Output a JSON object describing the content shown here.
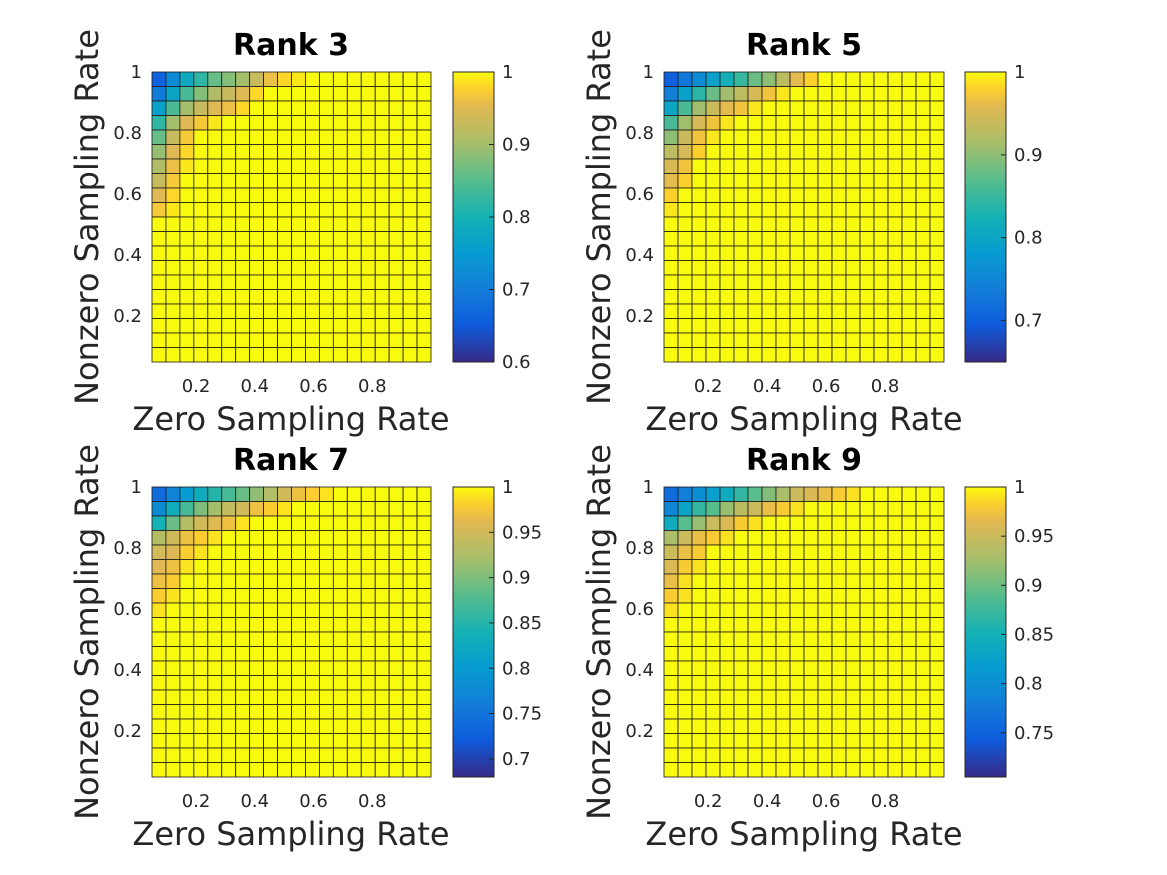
{
  "chart_data": [
    {
      "type": "heatmap",
      "title": "Rank 3",
      "xlabel": "Zero Sampling Rate",
      "ylabel": "Nonzero Sampling Rate",
      "grid_size": 20,
      "xlim": [
        0.05,
        1.0
      ],
      "ylim": [
        0.05,
        1.0
      ],
      "x_ticks": [
        0.2,
        0.4,
        0.6,
        0.8
      ],
      "x_tick_labels": [
        "0.2",
        "0.4",
        "0.6",
        "0.8"
      ],
      "y_ticks": [
        0.2,
        0.4,
        0.6,
        0.8,
        1.0
      ],
      "y_tick_labels": [
        "0.2",
        "0.4",
        "0.6",
        "0.8",
        "1"
      ],
      "colorbar": {
        "range": [
          0.6,
          1.0
        ],
        "ticks": [
          0.6,
          0.7,
          0.8,
          0.9,
          1.0
        ],
        "tick_labels": [
          "0.6",
          "0.7",
          "0.8",
          "0.9",
          "1"
        ]
      },
      "values_top_rows": [
        [
          0.66,
          0.72,
          0.78,
          0.82,
          0.86,
          0.88,
          0.9,
          0.93,
          0.96,
          0.98,
          0.99,
          1.0
        ],
        [
          0.7,
          0.77,
          0.84,
          0.88,
          0.91,
          0.93,
          0.95,
          0.98,
          1.0
        ],
        [
          0.76,
          0.84,
          0.9,
          0.93,
          0.95,
          0.96,
          0.98,
          1.0
        ],
        [
          0.82,
          0.9,
          0.95,
          0.97,
          0.99,
          1.0
        ],
        [
          0.86,
          0.93,
          0.97,
          1.0
        ],
        [
          0.89,
          0.95,
          0.98,
          1.0
        ],
        [
          0.91,
          0.96,
          0.99,
          1.0
        ],
        [
          0.93,
          0.97,
          1.0
        ],
        [
          0.95,
          0.98,
          1.0
        ],
        [
          0.97,
          0.99,
          1.0
        ]
      ],
      "default_value": 1.0
    },
    {
      "type": "heatmap",
      "title": "Rank 5",
      "xlabel": "Zero Sampling Rate",
      "ylabel": "Nonzero Sampling Rate",
      "grid_size": 20,
      "xlim": [
        0.05,
        1.0
      ],
      "ylim": [
        0.05,
        1.0
      ],
      "x_ticks": [
        0.2,
        0.4,
        0.6,
        0.8
      ],
      "x_tick_labels": [
        "0.2",
        "0.4",
        "0.6",
        "0.8"
      ],
      "y_ticks": [
        0.2,
        0.4,
        0.6,
        0.8,
        1.0
      ],
      "y_tick_labels": [
        "0.2",
        "0.4",
        "0.6",
        "0.8",
        "1"
      ],
      "colorbar": {
        "range": [
          0.65,
          1.0
        ],
        "ticks": [
          0.7,
          0.8,
          0.9,
          1.0
        ],
        "tick_labels": [
          "0.7",
          "0.8",
          "0.9",
          "1"
        ]
      },
      "values_top_rows": [
        [
          0.7,
          0.73,
          0.76,
          0.79,
          0.82,
          0.85,
          0.88,
          0.9,
          0.93,
          0.96,
          0.98,
          1.0
        ],
        [
          0.74,
          0.79,
          0.84,
          0.88,
          0.91,
          0.93,
          0.95,
          0.97,
          0.99,
          1.0
        ],
        [
          0.8,
          0.86,
          0.91,
          0.94,
          0.96,
          0.97,
          0.99,
          1.0
        ],
        [
          0.86,
          0.91,
          0.95,
          0.97,
          0.99,
          1.0
        ],
        [
          0.9,
          0.94,
          0.97,
          0.99,
          1.0
        ],
        [
          0.93,
          0.95,
          0.98,
          1.0
        ],
        [
          0.95,
          0.97,
          1.0
        ],
        [
          0.96,
          0.98,
          1.0
        ],
        [
          0.98,
          1.0
        ],
        [
          0.99,
          1.0
        ]
      ],
      "default_value": 1.0
    },
    {
      "type": "heatmap",
      "title": "Rank 7",
      "xlabel": "Zero Sampling Rate",
      "ylabel": "Nonzero Sampling Rate",
      "grid_size": 20,
      "xlim": [
        0.05,
        1.0
      ],
      "ylim": [
        0.05,
        1.0
      ],
      "x_ticks": [
        0.2,
        0.4,
        0.6,
        0.8
      ],
      "x_tick_labels": [
        "0.2",
        "0.4",
        "0.6",
        "0.8"
      ],
      "y_ticks": [
        0.2,
        0.4,
        0.6,
        0.8,
        1.0
      ],
      "y_tick_labels": [
        "0.2",
        "0.4",
        "0.6",
        "0.8",
        "1"
      ],
      "colorbar": {
        "range": [
          0.68,
          1.0
        ],
        "ticks": [
          0.7,
          0.75,
          0.8,
          0.85,
          0.9,
          0.95,
          1.0
        ],
        "tick_labels": [
          "0.7",
          "0.75",
          "0.8",
          "0.85",
          "0.9",
          "0.95",
          "1"
        ]
      },
      "values_top_rows": [
        [
          0.74,
          0.77,
          0.8,
          0.83,
          0.85,
          0.87,
          0.89,
          0.91,
          0.93,
          0.95,
          0.97,
          0.98,
          0.99,
          1.0
        ],
        [
          0.78,
          0.83,
          0.87,
          0.9,
          0.92,
          0.94,
          0.95,
          0.97,
          0.98,
          0.99,
          1.0
        ],
        [
          0.84,
          0.89,
          0.93,
          0.95,
          0.96,
          0.97,
          0.99,
          1.0
        ],
        [
          0.93,
          0.95,
          0.97,
          0.98,
          0.99,
          1.0
        ],
        [
          0.95,
          0.96,
          0.98,
          0.99,
          1.0
        ],
        [
          0.96,
          0.97,
          0.99,
          1.0
        ],
        [
          0.97,
          0.98,
          1.0
        ],
        [
          0.98,
          0.99,
          1.0
        ],
        [
          0.99,
          1.0
        ]
      ],
      "default_value": 1.0
    },
    {
      "type": "heatmap",
      "title": "Rank 9",
      "xlabel": "Zero Sampling Rate",
      "ylabel": "Nonzero Sampling Rate",
      "grid_size": 20,
      "xlim": [
        0.05,
        1.0
      ],
      "ylim": [
        0.05,
        1.0
      ],
      "x_ticks": [
        0.2,
        0.4,
        0.6,
        0.8
      ],
      "x_tick_labels": [
        "0.2",
        "0.4",
        "0.6",
        "0.8"
      ],
      "y_ticks": [
        0.2,
        0.4,
        0.6,
        0.8,
        1.0
      ],
      "y_tick_labels": [
        "0.2",
        "0.4",
        "0.6",
        "0.8",
        "1"
      ],
      "colorbar": {
        "range": [
          0.705,
          1.0
        ],
        "ticks": [
          0.75,
          0.8,
          0.85,
          0.9,
          0.95,
          1.0
        ],
        "tick_labels": [
          "0.75",
          "0.8",
          "0.85",
          "0.9",
          "0.95",
          "1"
        ]
      },
      "values_top_rows": [
        [
          0.76,
          0.78,
          0.8,
          0.82,
          0.84,
          0.87,
          0.89,
          0.91,
          0.93,
          0.95,
          0.96,
          0.97,
          0.98,
          0.99,
          1.0
        ],
        [
          0.79,
          0.83,
          0.87,
          0.89,
          0.92,
          0.94,
          0.95,
          0.97,
          0.98,
          0.99,
          1.0
        ],
        [
          0.84,
          0.89,
          0.92,
          0.95,
          0.96,
          0.98,
          0.99,
          1.0
        ],
        [
          0.93,
          0.95,
          0.97,
          0.98,
          0.99,
          1.0
        ],
        [
          0.95,
          0.97,
          0.98,
          1.0
        ],
        [
          0.96,
          0.98,
          0.99,
          1.0
        ],
        [
          0.97,
          0.99,
          1.0
        ],
        [
          0.98,
          0.99,
          1.0
        ],
        [
          0.99,
          1.0
        ]
      ],
      "default_value": 1.0
    }
  ]
}
